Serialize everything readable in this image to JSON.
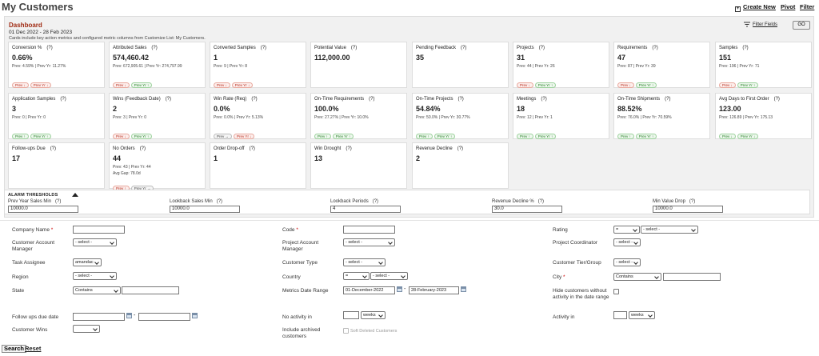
{
  "page": {
    "title": "My Customers"
  },
  "toolbar": {
    "create_new": "Create New",
    "pivot": "Pivot",
    "filter": "Filter"
  },
  "dashboard": {
    "title": "Dashboard",
    "date_range": "01 Dec 2022 - 28 Feb 2023",
    "note": "Cards include key action metrics and configured metric columns from Customize List: My Customers.",
    "filter_fields": "Filter Fields",
    "go": "GO",
    "cards": [
      {
        "label": "Conversion %",
        "help": "(?)",
        "value": "0.66%",
        "sub": "Prev: 4.59% | Prev Yr: 11.27%",
        "badges": [
          {
            "t": "Prev ↓",
            "k": "down"
          },
          {
            "t": "Prev Yr ↓",
            "k": "down"
          }
        ]
      },
      {
        "label": "Attributed Sales",
        "help": "(?)",
        "value": "574,460.42",
        "sub": "Prev: 672,905.61 | Prev Yr: 274,797.99",
        "badges": [
          {
            "t": "Prev ↓",
            "k": "down"
          },
          {
            "t": "Prev Yr ↑",
            "k": "up"
          }
        ]
      },
      {
        "label": "Converted Samples",
        "help": "(?)",
        "value": "1",
        "sub": "Prev: 9 | Prev Yr: 8",
        "badges": [
          {
            "t": "Prev ↓",
            "k": "down"
          },
          {
            "t": "Prev Yr ↓",
            "k": "down"
          }
        ]
      },
      {
        "label": "Potential Value",
        "help": "(?)",
        "value": "112,000.00",
        "sub": "",
        "badges": []
      },
      {
        "label": "Pending Feedback",
        "help": "(?)",
        "value": "35",
        "sub": "",
        "badges": []
      },
      {
        "label": "Projects",
        "help": "(?)",
        "value": "31",
        "sub": "Prev: 44 | Prev Yr: 26",
        "badges": [
          {
            "t": "Prev ↓",
            "k": "down"
          },
          {
            "t": "Prev Yr ↑",
            "k": "up"
          }
        ]
      },
      {
        "label": "Requirements",
        "help": "(?)",
        "value": "47",
        "sub": "Prev: 87 | Prev Yr: 39",
        "badges": [
          {
            "t": "Prev ↓",
            "k": "down"
          },
          {
            "t": "Prev Yr ↑",
            "k": "up"
          }
        ]
      },
      {
        "label": "Samples",
        "help": "(?)",
        "value": "151",
        "sub": "Prev: 196 | Prev Yr: 71",
        "badges": [
          {
            "t": "Prev ↓",
            "k": "down"
          },
          {
            "t": "Prev Yr ↑",
            "k": "up"
          }
        ]
      },
      {
        "label": "Application Samples",
        "help": "(?)",
        "value": "3",
        "sub": "Prev: 0 | Prev Yr: 0",
        "badges": [
          {
            "t": "Prev ↑",
            "k": "up"
          },
          {
            "t": "Prev Yr ↑",
            "k": "up"
          }
        ]
      },
      {
        "label": "Wins (Feedback Date)",
        "help": "(?)",
        "value": "2",
        "sub": "Prev: 3 | Prev Yr: 0",
        "badges": [
          {
            "t": "Prev ↓",
            "k": "down"
          },
          {
            "t": "Prev Yr ↑",
            "k": "up"
          }
        ]
      },
      {
        "label": "Win Rate (Req)",
        "help": "(?)",
        "value": "0.0%",
        "sub": "Prev: 0.0% | Prev Yr: 5.13%",
        "badges": [
          {
            "t": "Prev →",
            "k": "neutral"
          },
          {
            "t": "Prev Yr ↓",
            "k": "down"
          }
        ]
      },
      {
        "label": "On-Time Requirements",
        "help": "(?)",
        "value": "100.0%",
        "sub": "Prev: 27.27% | Prev Yr: 10.0%",
        "badges": [
          {
            "t": "Prev ↑",
            "k": "up"
          },
          {
            "t": "Prev Yr ↑",
            "k": "up"
          }
        ]
      },
      {
        "label": "On-Time Projects",
        "help": "(?)",
        "value": "54.84%",
        "sub": "Prev: 50.0% | Prev Yr: 30.77%",
        "badges": [
          {
            "t": "Prev ↑",
            "k": "up"
          },
          {
            "t": "Prev Yr ↑",
            "k": "up"
          }
        ]
      },
      {
        "label": "Meetings",
        "help": "(?)",
        "value": "18",
        "sub": "Prev: 12 | Prev Yr: 1",
        "badges": [
          {
            "t": "Prev ↑",
            "k": "up"
          },
          {
            "t": "Prev Yr ↑",
            "k": "up"
          }
        ]
      },
      {
        "label": "On-Time Shipments",
        "help": "(?)",
        "value": "88.52%",
        "sub": "Prev: 76.0% | Prev Yr: 70.59%",
        "badges": [
          {
            "t": "Prev ↑",
            "k": "up"
          },
          {
            "t": "Prev Yr ↑",
            "k": "up"
          }
        ]
      },
      {
        "label": "Avg Days to First Order",
        "help": "(?)",
        "value": "123.00",
        "sub": "Prev: 126.89 | Prev Yr: 175.13",
        "badges": [
          {
            "t": "Prev ↓",
            "k": "up"
          },
          {
            "t": "Prev Yr ↓",
            "k": "up"
          }
        ]
      },
      {
        "label": "Follow-ups Due",
        "help": "(?)",
        "value": "17",
        "sub": "",
        "badges": []
      },
      {
        "label": "No Orders",
        "help": "(?)",
        "value": "44",
        "sub": "Prev: 43 | Prev Yr: 44",
        "sub2": "Avg Gap: 78.0d",
        "badges": [
          {
            "t": "Prev ↑",
            "k": "down"
          },
          {
            "t": "Prev Yr →",
            "k": "neutral"
          }
        ]
      },
      {
        "label": "Order Drop-off",
        "help": "(?)",
        "value": "1",
        "sub": "",
        "badges": []
      },
      {
        "label": "Win Drought",
        "help": "(?)",
        "value": "13",
        "sub": "",
        "badges": []
      },
      {
        "label": "Revenue Decline",
        "help": "(?)",
        "value": "2",
        "sub": "",
        "badges": []
      }
    ]
  },
  "alarm": {
    "title": "ALARM THRESHOLDS",
    "fields": [
      {
        "label": "Prev Year Sales Min",
        "help": "(?)",
        "value": "10000.0"
      },
      {
        "label": "Lookback Sales Min",
        "help": "(?)",
        "value": "10000.0"
      },
      {
        "label": "Lookback Periods",
        "help": "(?)",
        "value": "4"
      },
      {
        "label": "Revenue Decline %",
        "help": "(?)",
        "value": "30.0"
      },
      {
        "label": "Min Value Drop",
        "help": "(?)",
        "value": "10000.0"
      }
    ]
  },
  "filters": {
    "company_name": "Company Name",
    "customer_account_manager": "Customer Account Manager",
    "task_assignee": "Task Assignee",
    "task_assignee_value": "amandac",
    "region": "Region",
    "state": "State",
    "state_op": "Contains",
    "follow_ups_due_date": "Follow ups due date",
    "customer_wins": "Customer Wins",
    "code": "Code",
    "project_account_manager": "Project Account Manager",
    "customer_type": "Customer Type",
    "country": "Country",
    "country_op": "=",
    "metrics_date_range": "Metrics Date Range",
    "date_from": "01-December-2022",
    "date_to": "28-February-2023",
    "no_activity_in": "No activity in",
    "weeks": "weeks",
    "include_archived": "Include archived customers",
    "soft_deleted": "Soft Deleted Customers",
    "rating": "Rating",
    "rating_op": "=",
    "project_coordinator": "Project Coordinator",
    "customer_tier_group": "Customer Tier/Group",
    "city": "City",
    "city_op": "Contains",
    "hide_customers": "Hide customers without activity in the date range",
    "activity_in": "Activity in",
    "select": "- select -",
    "dash": "-",
    "req": "*"
  },
  "actions": {
    "search": "Search",
    "reset": "Reset"
  }
}
